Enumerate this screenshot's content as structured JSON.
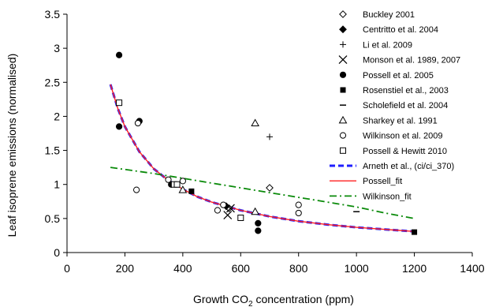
{
  "chart_data": {
    "type": "scatter",
    "xlabel_main": "Growth CO",
    "xlabel_sub": "2",
    "xlabel_rest": " concentration (ppm)",
    "ylabel": "Leaf isoprene emissions (normalised)",
    "xlim": [
      0,
      1400
    ],
    "ylim": [
      0,
      3.5
    ],
    "x_ticks": [
      0,
      200,
      400,
      600,
      800,
      1000,
      1200,
      1400
    ],
    "y_ticks": [
      0,
      0.5,
      1,
      1.5,
      2,
      2.5,
      3,
      3.5
    ],
    "x_tick_labels": [
      "0",
      "200",
      "400",
      "600",
      "800",
      "1000",
      "1200",
      "1400"
    ],
    "y_tick_labels": [
      "0",
      "0.5",
      "1",
      "1.5",
      "2",
      "2.5",
      "3",
      "3.5"
    ],
    "legend_position": "top-right",
    "grid": false,
    "series": [
      {
        "name": "Buckley 2001",
        "marker": "open-diamond",
        "points": [
          [
            700,
            0.95
          ],
          [
            560,
            0.65
          ]
        ]
      },
      {
        "name": "Centritto et al. 2004",
        "marker": "filled-diamond",
        "points": [
          [
            550,
            0.68
          ]
        ]
      },
      {
        "name": "Li et al. 2009",
        "marker": "plus",
        "points": [
          [
            700,
            1.7
          ]
        ]
      },
      {
        "name": "Monson et al. 1989, 2007",
        "marker": "x",
        "points": [
          [
            555,
            0.55
          ],
          [
            565,
            0.65
          ]
        ]
      },
      {
        "name": "Possell et al. 2005",
        "marker": "filled-circle",
        "points": [
          [
            180,
            2.9
          ],
          [
            180,
            1.85
          ],
          [
            250,
            1.93
          ],
          [
            360,
            1.0
          ],
          [
            660,
            0.43
          ],
          [
            660,
            0.32
          ]
        ]
      },
      {
        "name": "Rosenstiel et al., 2003",
        "marker": "filled-square",
        "points": [
          [
            430,
            0.9
          ],
          [
            1200,
            0.3
          ]
        ]
      },
      {
        "name": "Scholefield et al. 2004",
        "marker": "dash",
        "points": [
          [
            1000,
            0.6
          ]
        ]
      },
      {
        "name": "Sharkey et al. 1991",
        "marker": "open-triangle",
        "points": [
          [
            650,
            1.9
          ],
          [
            650,
            0.6
          ],
          [
            400,
            0.92
          ]
        ]
      },
      {
        "name": "Wilkinson et al. 2009",
        "marker": "open-circle",
        "points": [
          [
            240,
            0.92
          ],
          [
            245,
            1.9
          ],
          [
            350,
            1.07
          ],
          [
            400,
            1.05
          ],
          [
            520,
            0.62
          ],
          [
            540,
            0.7
          ],
          [
            800,
            0.7
          ],
          [
            800,
            0.58
          ]
        ]
      },
      {
        "name": "Possell & Hewitt 2010",
        "marker": "open-square",
        "points": [
          [
            180,
            2.2
          ],
          [
            370,
            1.0
          ],
          [
            380,
            1.0
          ],
          [
            600,
            0.51
          ]
        ]
      }
    ],
    "fit_lines": [
      {
        "name": "Arneth et al., (ci/ci_370)",
        "color": "#1f1fff",
        "style": "dashed-bold",
        "x": [
          150,
          175,
          200,
          250,
          300,
          350,
          400,
          450,
          500,
          600,
          700,
          800,
          900,
          1000,
          1100,
          1200
        ],
        "y": [
          2.47,
          2.12,
          1.85,
          1.48,
          1.23,
          1.06,
          0.93,
          0.82,
          0.74,
          0.62,
          0.53,
          0.46,
          0.41,
          0.37,
          0.34,
          0.31
        ]
      },
      {
        "name": "Possell_fit",
        "color": "#ff2020",
        "style": "solid",
        "x": [
          150,
          175,
          200,
          250,
          300,
          350,
          400,
          450,
          500,
          600,
          700,
          800,
          900,
          1000,
          1100,
          1200
        ],
        "y": [
          2.47,
          2.12,
          1.85,
          1.48,
          1.23,
          1.06,
          0.93,
          0.82,
          0.74,
          0.62,
          0.53,
          0.46,
          0.41,
          0.37,
          0.34,
          0.31
        ]
      },
      {
        "name": "Wilkinson_fit",
        "color": "#0a8a0a",
        "style": "dash-dot",
        "x": [
          150,
          200,
          300,
          400,
          500,
          600,
          700,
          800,
          900,
          1000,
          1100,
          1200
        ],
        "y": [
          1.25,
          1.22,
          1.16,
          1.09,
          1.02,
          0.95,
          0.88,
          0.81,
          0.74,
          0.67,
          0.58,
          0.5
        ]
      }
    ]
  }
}
